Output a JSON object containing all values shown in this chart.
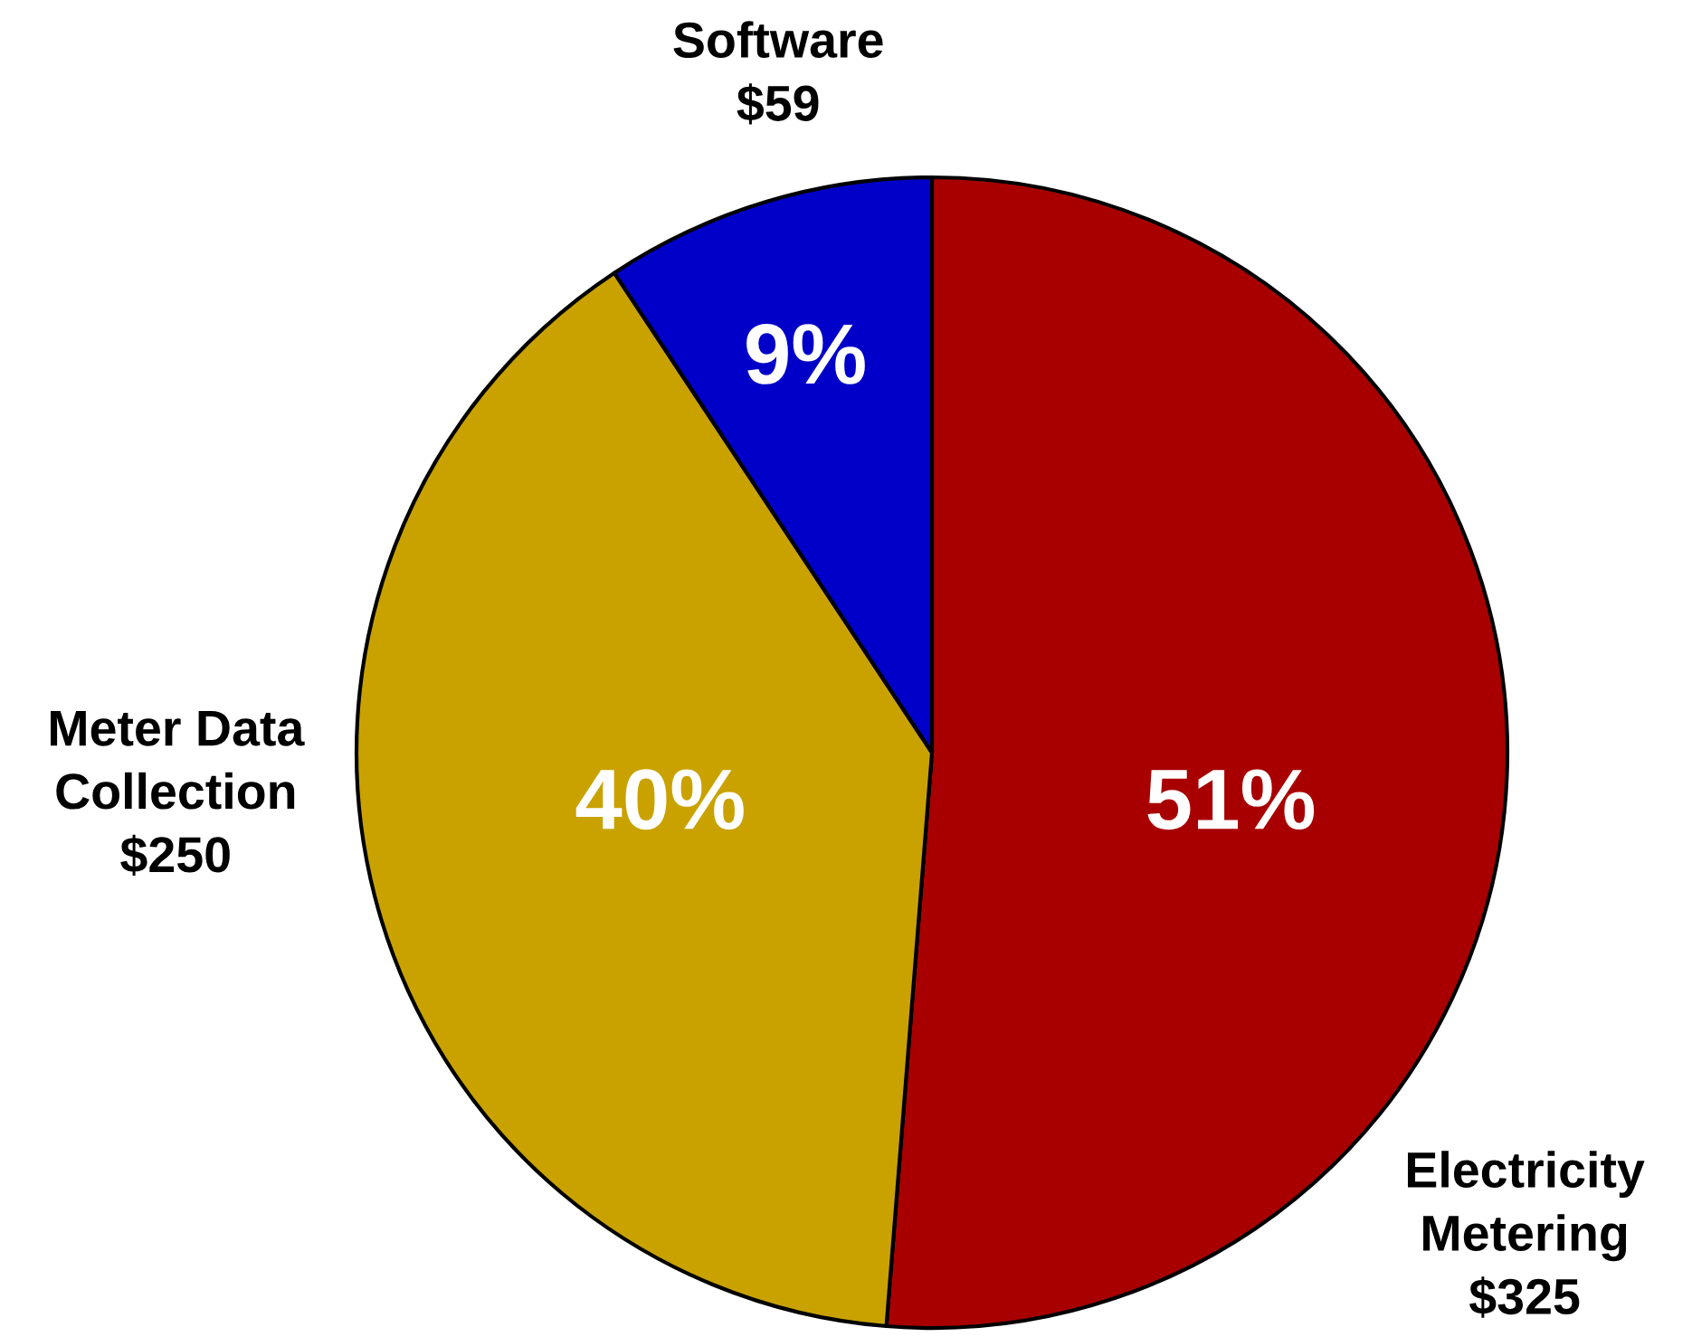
{
  "chart_data": {
    "type": "pie",
    "categories": [
      "Electricity Metering",
      "Meter Data Collection",
      "Software"
    ],
    "values": [
      325,
      250,
      59
    ],
    "colors": [
      "#a80000",
      "#c9a200",
      "#0000c8"
    ],
    "value_labels": [
      "$325",
      "$250",
      "$59"
    ],
    "annotations": [
      {
        "text": "51%",
        "x": "Electricity Metering"
      },
      {
        "text": "40%",
        "x": "Meter Data Collection"
      },
      {
        "text": "9%",
        "x": "Software"
      }
    ]
  }
}
